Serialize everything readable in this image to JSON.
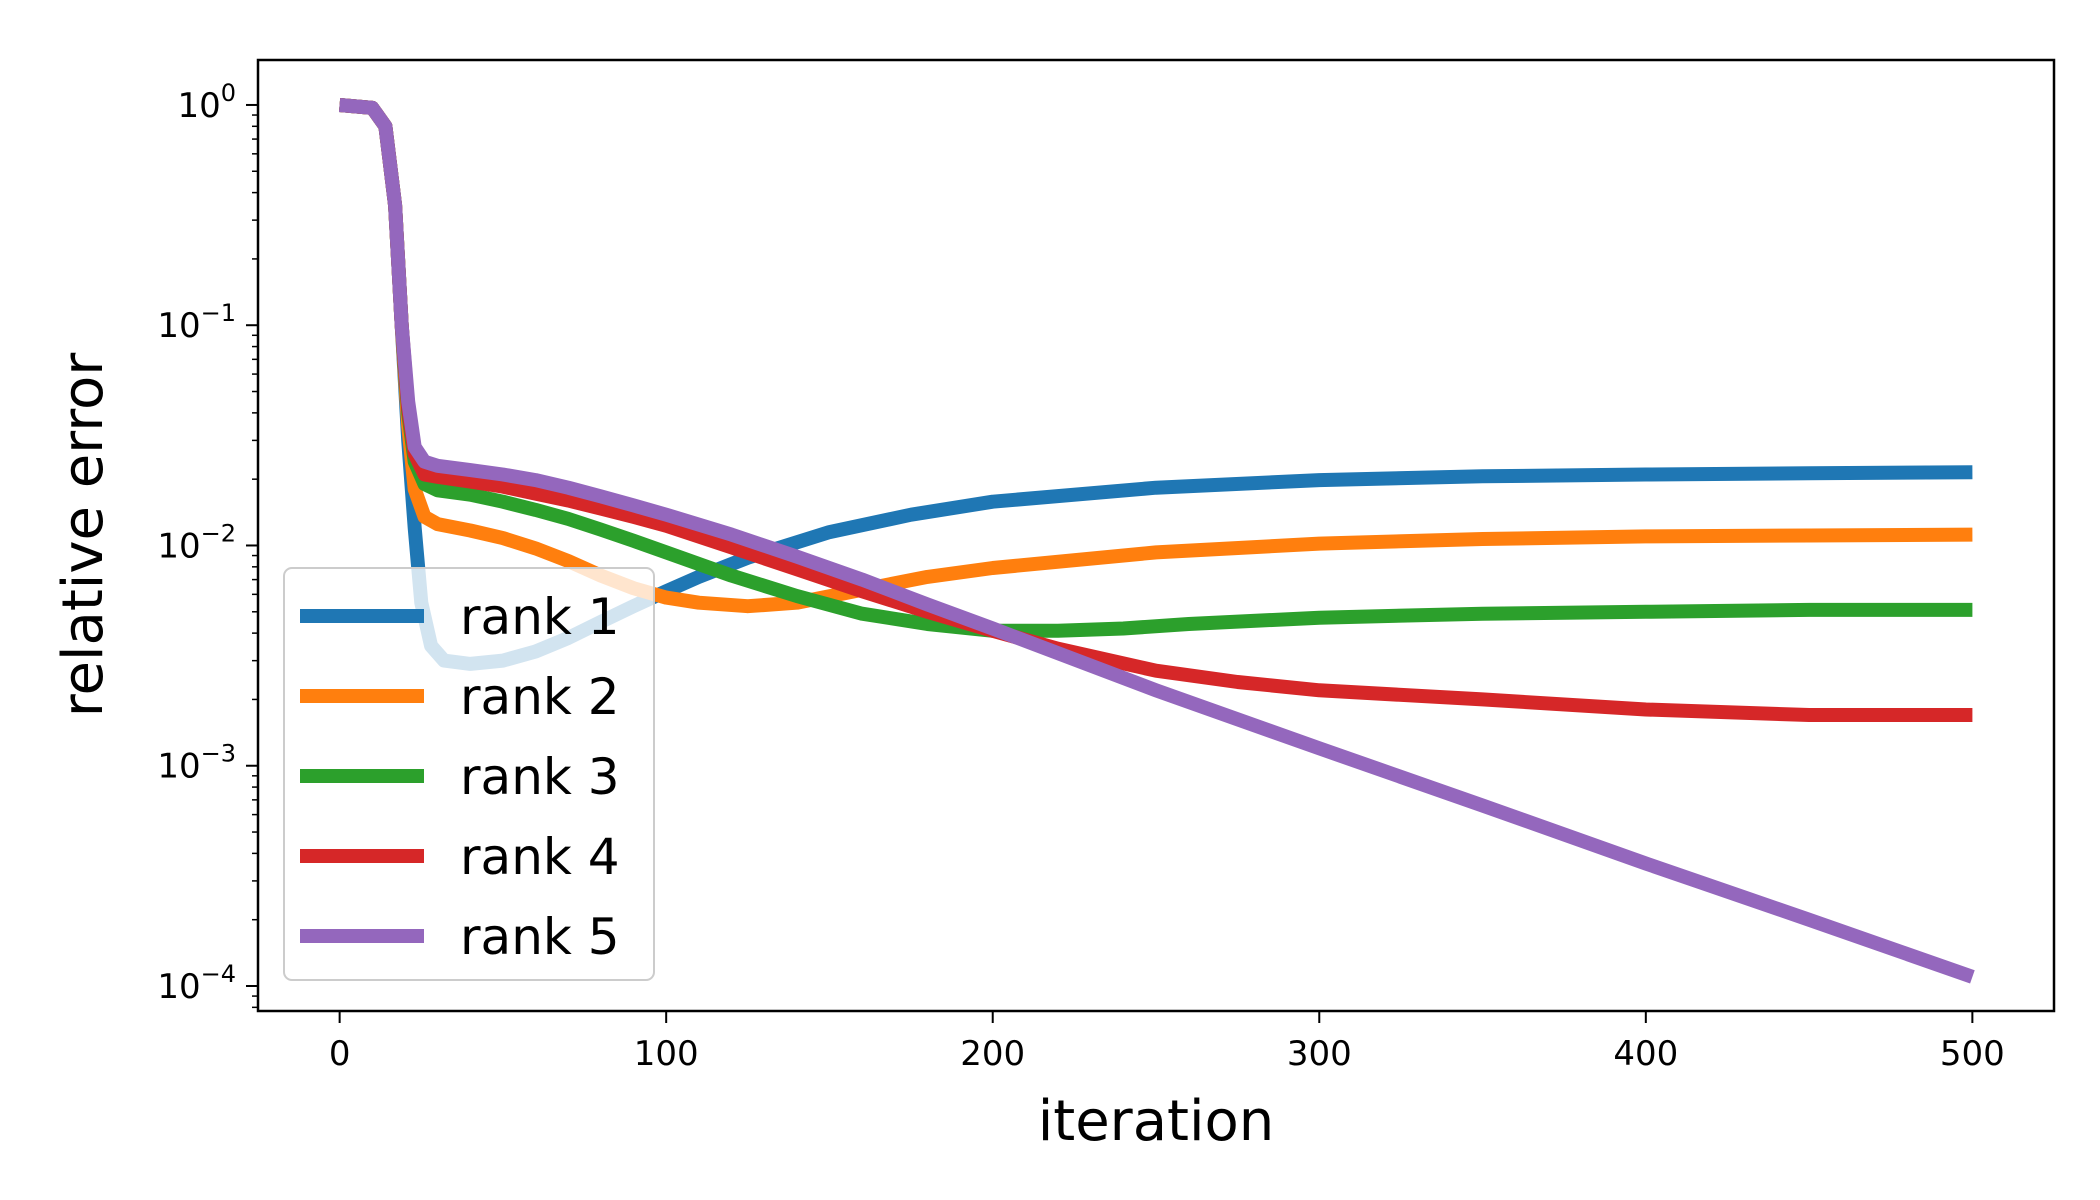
{
  "chart_data": {
    "type": "line",
    "title": "",
    "xlabel": "iteration",
    "ylabel": "relative error",
    "xlim": [
      -25,
      525
    ],
    "ylim": [
      7.7e-05,
      1.6
    ],
    "yscale": "log",
    "xticks": [
      {
        "value": 0,
        "label": "0"
      },
      {
        "value": 100,
        "label": "100"
      },
      {
        "value": 200,
        "label": "200"
      },
      {
        "value": 300,
        "label": "300"
      },
      {
        "value": 400,
        "label": "400"
      },
      {
        "value": 500,
        "label": "500"
      }
    ],
    "yticks": [
      {
        "value": 1,
        "base": "10",
        "exp": "0"
      },
      {
        "value": 0.1,
        "base": "10",
        "exp": "−1"
      },
      {
        "value": 0.01,
        "base": "10",
        "exp": "−2"
      },
      {
        "value": 0.001,
        "base": "10",
        "exp": "−3"
      },
      {
        "value": 0.0001,
        "base": "10",
        "exp": "−4"
      }
    ],
    "grid": false,
    "legend_position": "lower-left",
    "series": [
      {
        "name": "rank 1",
        "color": "#1f77b4",
        "x": [
          0,
          10,
          14,
          17,
          19,
          21,
          23,
          25,
          28,
          32,
          40,
          50,
          60,
          70,
          80,
          90,
          100,
          110,
          125,
          150,
          175,
          200,
          250,
          300,
          350,
          400,
          450,
          500
        ],
        "y": [
          1.0,
          0.97,
          0.8,
          0.35,
          0.1,
          0.03,
          0.012,
          0.0055,
          0.0035,
          0.003,
          0.0029,
          0.003,
          0.0033,
          0.0038,
          0.0045,
          0.0053,
          0.0062,
          0.0072,
          0.0088,
          0.0115,
          0.0138,
          0.0158,
          0.0183,
          0.0198,
          0.0206,
          0.021,
          0.0213,
          0.0215
        ]
      },
      {
        "name": "rank 2",
        "color": "#ff7f0e",
        "x": [
          0,
          10,
          14,
          17,
          19,
          21,
          23,
          26,
          30,
          40,
          50,
          60,
          70,
          80,
          90,
          100,
          110,
          125,
          140,
          160,
          180,
          200,
          250,
          300,
          350,
          400,
          450,
          500
        ],
        "y": [
          1.0,
          0.97,
          0.8,
          0.35,
          0.1,
          0.035,
          0.018,
          0.0135,
          0.0125,
          0.0117,
          0.0108,
          0.0097,
          0.0085,
          0.0073,
          0.0064,
          0.0058,
          0.0055,
          0.0053,
          0.0055,
          0.0063,
          0.0072,
          0.0079,
          0.0093,
          0.0102,
          0.0107,
          0.011,
          0.0111,
          0.0112
        ]
      },
      {
        "name": "rank 3",
        "color": "#2ca02c",
        "x": [
          0,
          10,
          14,
          17,
          19,
          21,
          23,
          26,
          30,
          40,
          50,
          60,
          70,
          80,
          90,
          100,
          120,
          140,
          160,
          180,
          200,
          220,
          240,
          260,
          300,
          350,
          400,
          450,
          500
        ],
        "y": [
          1.0,
          0.97,
          0.8,
          0.35,
          0.1,
          0.04,
          0.024,
          0.019,
          0.0178,
          0.017,
          0.0158,
          0.0145,
          0.0132,
          0.0118,
          0.0105,
          0.0093,
          0.0073,
          0.0059,
          0.0049,
          0.0044,
          0.0041,
          0.0041,
          0.0042,
          0.0044,
          0.0047,
          0.0049,
          0.005,
          0.0051,
          0.0051
        ]
      },
      {
        "name": "rank 4",
        "color": "#d62728",
        "x": [
          0,
          10,
          14,
          17,
          19,
          21,
          23,
          26,
          30,
          40,
          50,
          60,
          70,
          80,
          90,
          100,
          120,
          140,
          160,
          180,
          200,
          220,
          250,
          275,
          300,
          350,
          400,
          450,
          500
        ],
        "y": [
          1.0,
          0.97,
          0.8,
          0.35,
          0.1,
          0.042,
          0.026,
          0.021,
          0.0205,
          0.0195,
          0.0185,
          0.0172,
          0.016,
          0.0147,
          0.0135,
          0.0123,
          0.0098,
          0.0078,
          0.0062,
          0.005,
          0.0041,
          0.0034,
          0.0027,
          0.0024,
          0.0022,
          0.002,
          0.0018,
          0.0017,
          0.0017
        ]
      },
      {
        "name": "rank 5",
        "color": "#9467bd",
        "x": [
          0,
          10,
          14,
          17,
          19,
          21,
          23,
          26,
          30,
          40,
          50,
          60,
          70,
          80,
          90,
          100,
          120,
          140,
          160,
          180,
          200,
          250,
          300,
          350,
          400,
          450,
          500
        ],
        "y": [
          1.0,
          0.97,
          0.8,
          0.35,
          0.1,
          0.045,
          0.028,
          0.024,
          0.023,
          0.022,
          0.021,
          0.0198,
          0.0183,
          0.0167,
          0.0152,
          0.0138,
          0.0112,
          0.0089,
          0.007,
          0.0054,
          0.0042,
          0.0022,
          0.0012,
          0.00066,
          0.00036,
          0.0002,
          0.00011
        ]
      }
    ]
  }
}
